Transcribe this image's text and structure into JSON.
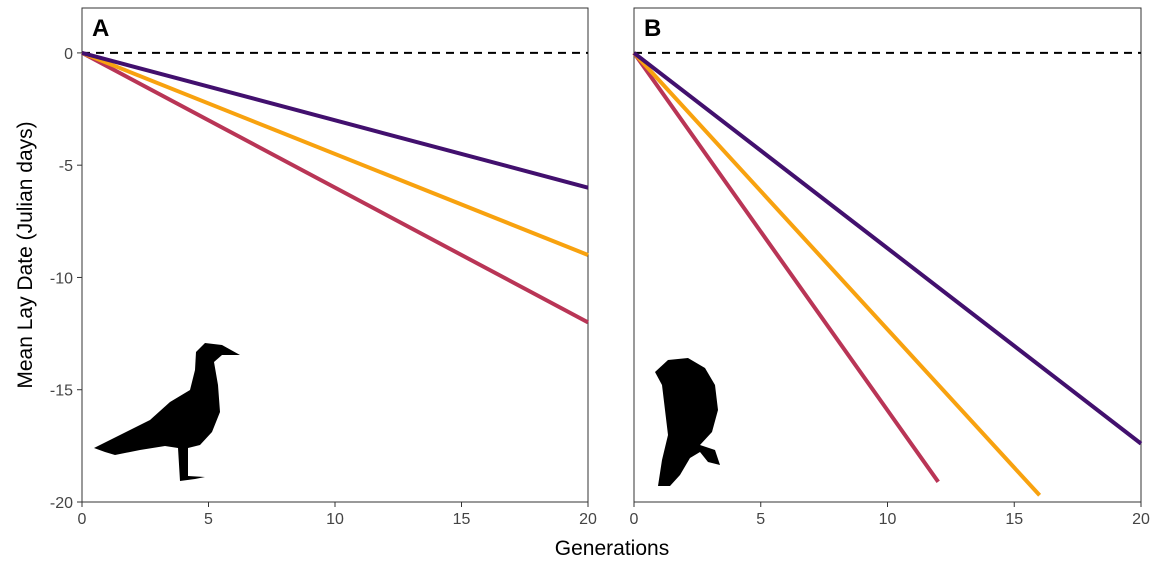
{
  "xlabel": "Generations",
  "ylabel": "Mean Lay Date (Julian days)",
  "chart_data": [
    {
      "type": "line",
      "label": "A",
      "xlim": [
        0,
        20
      ],
      "ylim": [
        -20,
        2
      ],
      "xticks": [
        0,
        5,
        10,
        15,
        20
      ],
      "yticks": [
        -20,
        -15,
        -10,
        -5,
        0
      ],
      "hline": 0,
      "series": [
        {
          "color": "#b93556",
          "x": [
            0,
            20
          ],
          "values": [
            0,
            -12
          ]
        },
        {
          "color": "#f8a20f",
          "x": [
            0,
            20
          ],
          "values": [
            0,
            -9
          ]
        },
        {
          "color": "#42106e",
          "x": [
            0,
            20
          ],
          "values": [
            0,
            -6
          ]
        }
      ]
    },
    {
      "type": "line",
      "label": "B",
      "xlim": [
        0,
        20
      ],
      "ylim": [
        -20,
        2
      ],
      "xticks": [
        0,
        5,
        10,
        15,
        20
      ],
      "hline": 0,
      "series": [
        {
          "color": "#b93556",
          "x": [
            0,
            12
          ],
          "values": [
            0,
            -19.1
          ]
        },
        {
          "color": "#f8a20f",
          "x": [
            0,
            16
          ],
          "values": [
            0,
            -19.7
          ]
        },
        {
          "color": "#42106e",
          "x": [
            0,
            20
          ],
          "values": [
            0,
            -17.4
          ]
        }
      ]
    }
  ]
}
